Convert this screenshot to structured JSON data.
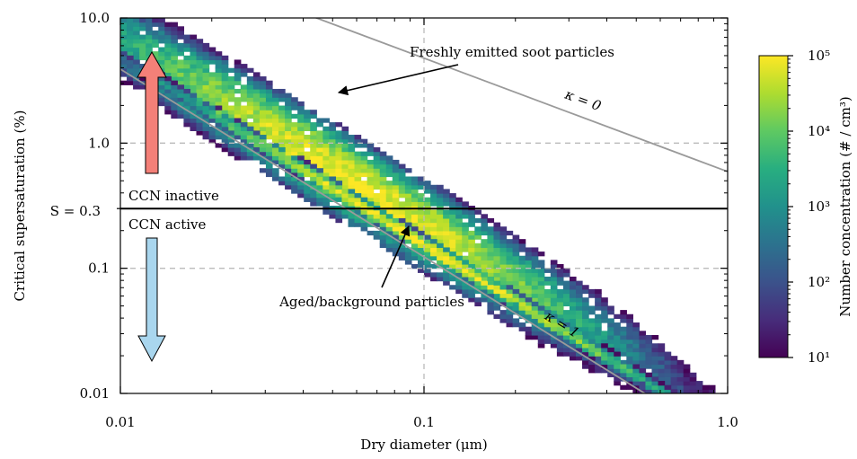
{
  "chart_data": {
    "type": "heatmap",
    "title": "",
    "xlabel": "Dry diameter (μm)",
    "ylabel": "Critical supersaturation (%)",
    "xscale": "log",
    "yscale": "log",
    "xlim": [
      0.01,
      1.0
    ],
    "ylim": [
      0.01,
      10.0
    ],
    "x_ticks": [
      {
        "value": 0.01,
        "label": "0.01"
      },
      {
        "value": 0.1,
        "label": "0.1"
      },
      {
        "value": 1.0,
        "label": "1.0"
      }
    ],
    "y_ticks": [
      {
        "value": 0.01,
        "label": "0.01"
      },
      {
        "value": 0.1,
        "label": "0.1"
      },
      {
        "value": 1.0,
        "label": "1.0"
      },
      {
        "value": 10.0,
        "label": "10.0"
      }
    ],
    "grid": "dashed lines at x=0.1 and y=0.1, 1.0",
    "threshold": {
      "value": 0.3,
      "label": "S = 0.3"
    },
    "region_labels": {
      "above": "CCN inactive",
      "below": "CCN active"
    },
    "reference_lines": [
      {
        "label": "κ = 0",
        "points": [
          [
            0.01,
            38.5
          ],
          [
            1.0,
            0.592
          ]
        ]
      },
      {
        "label": "κ = 1",
        "points": [
          [
            0.01,
            3.9
          ],
          [
            1.0,
            0.0039
          ]
        ]
      }
    ],
    "annotations": [
      {
        "text": "Freshly emitted soot particles",
        "points_to": [
          0.05,
          2.4
        ]
      },
      {
        "text": "Aged/background particles",
        "points_to": [
          0.09,
          0.23
        ]
      }
    ],
    "bands": [
      {
        "name": "fresh soot",
        "x_range": [
          0.01,
          0.95
        ],
        "y_center_at_x0_01": 7.0,
        "log_slope": -1.5,
        "x_peak": 0.06,
        "peak_log10": 4.9
      },
      {
        "name": "aged/background",
        "x_range": [
          0.01,
          0.95
        ],
        "y_center_at_x0_01": 4.9,
        "log_slope": -1.5,
        "x_peak": 0.1,
        "peak_log10": 5.0
      }
    ],
    "colorbar": {
      "label": "Number concentration (# / cm³)",
      "scale": "log",
      "range": [
        10,
        100000
      ],
      "tick_labels": [
        "10¹",
        "10²",
        "10³",
        "10⁴",
        "10⁵"
      ],
      "colormap": "viridis"
    }
  }
}
